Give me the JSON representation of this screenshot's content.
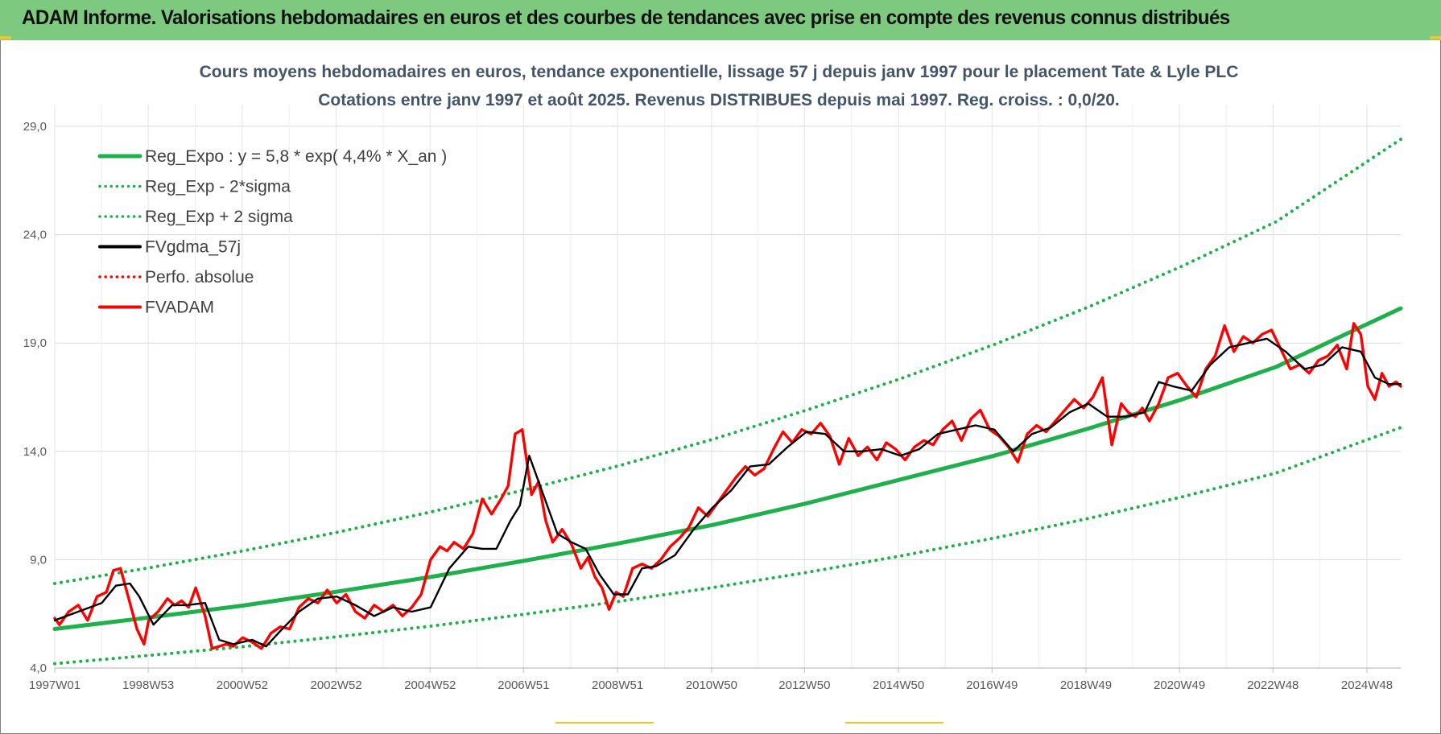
{
  "banner": {
    "title": "ADAM Informe. Valorisations hebdomadaires en euros et des courbes de tendances avec prise en compte des revenus connus distribués",
    "color": "#7cc97f"
  },
  "chart_data": {
    "type": "line",
    "title_lines": [
      "Cours moyens hebdomadaires en euros, tendance exponentielle, lissage 57 j depuis janv 1997 pour le placement Tate & Lyle  PLC",
      "Cotations entre janv 1997 et août 2025. Revenus DISTRIBUES depuis mai 1997. Reg. croiss. : 0,0/20."
    ],
    "xlabel": "",
    "ylabel": "",
    "ylim": [
      4.0,
      30.0
    ],
    "y_ticks": [
      4.0,
      9.0,
      14.0,
      19.0,
      24.0,
      29.0
    ],
    "y_tick_labels": [
      "4,0",
      "9,0",
      "14,0",
      "19,0",
      "24,0",
      "29,0"
    ],
    "x_range": [
      1997.0,
      2025.65
    ],
    "x_ticks": [
      1997.0,
      1998.99,
      2000.99,
      2002.99,
      2004.99,
      2006.98,
      2008.98,
      2010.98,
      2012.96,
      2014.96,
      2016.95,
      2018.95,
      2020.94,
      2022.93,
      2024.93
    ],
    "x_tick_labels": [
      "1997W01",
      "1998W53",
      "2000W52",
      "2002W52",
      "2004W52",
      "2006W51",
      "2008W51",
      "2010W50",
      "2012W50",
      "2014W50",
      "2016W49",
      "2018W49",
      "2020W49",
      "2022W48",
      "2024W48"
    ],
    "grid": true,
    "legend_position": "top-left",
    "series": [
      {
        "name": "Reg_Expo : y = 5,8 * exp( 4,4% *  X_an )",
        "style": "solid-thick",
        "color": "#1fb04b",
        "x": [
          1997,
          1999,
          2001,
          2003,
          2005,
          2007,
          2009,
          2011,
          2013,
          2015,
          2017,
          2019,
          2021,
          2023,
          2025.65
        ],
        "values": [
          5.8,
          6.33,
          6.88,
          7.52,
          8.2,
          8.95,
          9.75,
          10.6,
          11.6,
          12.7,
          13.8,
          15.05,
          16.4,
          17.9,
          20.6
        ]
      },
      {
        "name": "Reg_Exp - 2*sigma",
        "style": "dotted",
        "color": "#1fb04b",
        "x": [
          1997,
          1999,
          2001,
          2003,
          2005,
          2007,
          2009,
          2011,
          2013,
          2015,
          2017,
          2019,
          2021,
          2023,
          2025.65
        ],
        "values": [
          4.2,
          4.58,
          4.98,
          5.44,
          5.93,
          6.48,
          7.07,
          7.71,
          8.41,
          9.17,
          10.0,
          10.9,
          11.9,
          13.0,
          15.1
        ]
      },
      {
        "name": "Reg_Exp + 2 sigma",
        "style": "dotted",
        "color": "#1fb04b",
        "x": [
          1997,
          1999,
          2001,
          2003,
          2005,
          2007,
          2009,
          2011,
          2013,
          2015,
          2017,
          2019,
          2021,
          2023,
          2025.65
        ],
        "values": [
          7.9,
          8.62,
          9.4,
          10.26,
          11.2,
          12.22,
          13.33,
          14.55,
          15.9,
          17.35,
          18.93,
          20.66,
          22.55,
          24.6,
          28.4
        ]
      },
      {
        "name": "FVgdma_57j",
        "style": "solid",
        "color": "#000000",
        "x": [
          1997.0,
          1997.5,
          1998.0,
          1998.3,
          1998.6,
          1998.8,
          1999.1,
          1999.5,
          1999.8,
          2000.2,
          2000.5,
          2000.8,
          2001.2,
          2001.5,
          2001.8,
          2002.2,
          2002.6,
          2003.0,
          2003.4,
          2003.8,
          2004.2,
          2004.6,
          2005.0,
          2005.4,
          2005.8,
          2006.1,
          2006.4,
          2006.7,
          2006.9,
          2007.1,
          2007.4,
          2007.7,
          2008.0,
          2008.3,
          2008.6,
          2008.9,
          2009.2,
          2009.5,
          2009.8,
          2010.2,
          2010.6,
          2011.0,
          2011.4,
          2011.8,
          2012.2,
          2012.6,
          2013.0,
          2013.4,
          2013.8,
          2014.2,
          2014.6,
          2015.0,
          2015.4,
          2015.8,
          2016.2,
          2016.6,
          2017.0,
          2017.4,
          2017.8,
          2018.2,
          2018.6,
          2019.0,
          2019.4,
          2019.8,
          2020.2,
          2020.5,
          2020.8,
          2021.2,
          2021.6,
          2022.0,
          2022.4,
          2022.8,
          2023.2,
          2023.6,
          2024.0,
          2024.4,
          2024.8,
          2025.1,
          2025.4,
          2025.65
        ],
        "values": [
          6.2,
          6.6,
          7.0,
          7.8,
          7.9,
          7.3,
          6.0,
          6.9,
          6.9,
          7.0,
          5.3,
          5.1,
          5.3,
          5.0,
          5.7,
          6.6,
          7.2,
          7.3,
          6.9,
          6.4,
          6.8,
          6.6,
          6.8,
          8.6,
          9.6,
          9.5,
          9.5,
          10.8,
          11.5,
          13.8,
          12.0,
          10.2,
          9.8,
          9.5,
          8.3,
          7.4,
          7.4,
          8.6,
          8.7,
          9.2,
          10.4,
          11.4,
          12.2,
          13.3,
          13.4,
          14.2,
          14.9,
          14.8,
          14.0,
          14.0,
          14.1,
          13.8,
          14.1,
          14.8,
          15.0,
          15.2,
          15.0,
          14.0,
          14.8,
          15.1,
          15.8,
          16.2,
          15.6,
          15.6,
          15.8,
          17.2,
          17.0,
          16.8,
          18.0,
          18.8,
          19.0,
          19.2,
          18.6,
          17.8,
          18.0,
          18.8,
          18.6,
          17.4,
          17.1,
          17.1
        ]
      },
      {
        "name": "Perfo. absolue",
        "style": "dotted",
        "color": "#ff0000",
        "x": [],
        "values": []
      },
      {
        "name": "FVADAM",
        "style": "solid-thick",
        "color": "#ff0000",
        "x": [
          1997.0,
          1997.1,
          1997.3,
          1997.5,
          1997.7,
          1997.9,
          1998.1,
          1998.25,
          1998.4,
          1998.55,
          1998.75,
          1998.9,
          1999.0,
          1999.2,
          1999.4,
          1999.55,
          1999.7,
          1999.85,
          2000.0,
          2000.2,
          2000.35,
          2000.5,
          2000.65,
          2000.8,
          2001.0,
          2001.2,
          2001.4,
          2001.6,
          2001.8,
          2002.0,
          2002.2,
          2002.4,
          2002.6,
          2002.8,
          2003.0,
          2003.2,
          2003.4,
          2003.6,
          2003.8,
          2004.0,
          2004.2,
          2004.4,
          2004.6,
          2004.8,
          2005.0,
          2005.2,
          2005.35,
          2005.5,
          2005.7,
          2005.9,
          2006.1,
          2006.3,
          2006.5,
          2006.65,
          2006.8,
          2006.95,
          2007.05,
          2007.15,
          2007.3,
          2007.45,
          2007.6,
          2007.8,
          2008.0,
          2008.2,
          2008.35,
          2008.5,
          2008.65,
          2008.8,
          2008.95,
          2009.1,
          2009.3,
          2009.5,
          2009.7,
          2009.9,
          2010.1,
          2010.3,
          2010.5,
          2010.7,
          2010.9,
          2011.1,
          2011.3,
          2011.5,
          2011.7,
          2011.9,
          2012.1,
          2012.3,
          2012.5,
          2012.7,
          2012.9,
          2013.1,
          2013.3,
          2013.5,
          2013.7,
          2013.9,
          2014.1,
          2014.3,
          2014.5,
          2014.7,
          2014.9,
          2015.1,
          2015.3,
          2015.5,
          2015.7,
          2015.9,
          2016.1,
          2016.3,
          2016.5,
          2016.7,
          2016.9,
          2017.1,
          2017.3,
          2017.5,
          2017.7,
          2017.9,
          2018.1,
          2018.3,
          2018.5,
          2018.7,
          2018.9,
          2019.1,
          2019.3,
          2019.5,
          2019.7,
          2019.85,
          2020.0,
          2020.15,
          2020.3,
          2020.5,
          2020.7,
          2020.9,
          2021.1,
          2021.3,
          2021.5,
          2021.7,
          2021.9,
          2022.1,
          2022.3,
          2022.5,
          2022.7,
          2022.9,
          2023.1,
          2023.3,
          2023.5,
          2023.7,
          2023.9,
          2024.1,
          2024.3,
          2024.5,
          2024.65,
          2024.8,
          2024.95,
          2025.1,
          2025.25,
          2025.4,
          2025.55,
          2025.65
        ],
        "values": [
          6.3,
          6.0,
          6.6,
          6.9,
          6.2,
          7.3,
          7.5,
          8.5,
          8.6,
          7.4,
          5.8,
          5.1,
          6.2,
          6.6,
          7.2,
          6.9,
          7.1,
          6.8,
          7.7,
          6.4,
          4.9,
          5.0,
          5.1,
          5.0,
          5.4,
          5.2,
          4.9,
          5.6,
          5.9,
          5.8,
          6.8,
          7.2,
          7.0,
          7.6,
          7.0,
          7.4,
          6.6,
          6.3,
          6.9,
          6.6,
          6.9,
          6.4,
          6.8,
          7.4,
          9.0,
          9.6,
          9.4,
          9.8,
          9.5,
          10.2,
          11.8,
          11.1,
          11.8,
          12.4,
          14.8,
          15.0,
          13.5,
          12.0,
          12.6,
          10.8,
          9.8,
          10.4,
          9.7,
          8.6,
          9.1,
          8.2,
          7.7,
          6.7,
          7.5,
          7.3,
          8.6,
          8.8,
          8.6,
          9.0,
          9.6,
          10.0,
          10.5,
          11.4,
          11.0,
          11.6,
          12.2,
          12.8,
          13.3,
          12.9,
          13.2,
          14.1,
          14.9,
          14.4,
          15.0,
          14.8,
          15.3,
          14.7,
          13.4,
          14.6,
          13.8,
          14.2,
          13.6,
          14.4,
          14.1,
          13.6,
          14.2,
          14.5,
          14.3,
          15.0,
          15.4,
          14.5,
          15.5,
          15.9,
          15.0,
          14.7,
          14.2,
          13.5,
          14.8,
          15.2,
          14.9,
          15.4,
          15.9,
          16.4,
          16.0,
          16.5,
          17.4,
          14.3,
          16.2,
          15.8,
          15.6,
          16.0,
          15.4,
          16.2,
          17.4,
          17.6,
          17.0,
          16.5,
          17.8,
          18.4,
          19.8,
          18.6,
          19.3,
          19.0,
          19.4,
          19.6,
          18.7,
          17.8,
          18.0,
          17.6,
          18.2,
          18.4,
          18.9,
          17.8,
          19.9,
          19.4,
          17.0,
          16.4,
          17.6,
          17.0,
          17.2,
          17.0
        ]
      }
    ]
  }
}
